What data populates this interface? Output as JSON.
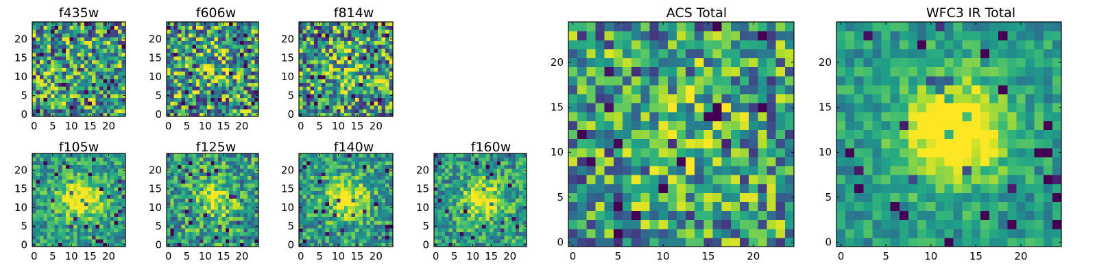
{
  "colors": {
    "colormap": "viridis",
    "low": "#440154",
    "high": "#fde725"
  },
  "chart_data": [
    {
      "type": "heatmap",
      "title": "f435w",
      "x_ticks": [
        "0",
        "5",
        "10",
        "15",
        "20"
      ],
      "y_ticks": [
        "0",
        "5",
        "10",
        "15",
        "20"
      ],
      "xlim": [
        -0.5,
        24.5
      ],
      "ylim": [
        -0.5,
        24.5
      ],
      "grid_size": 25,
      "grid": false,
      "blob": 0.0,
      "noise": 1.0,
      "seed": 11
    },
    {
      "type": "heatmap",
      "title": "f606w",
      "x_ticks": [
        "0",
        "5",
        "10",
        "15",
        "20"
      ],
      "y_ticks": [
        "0",
        "5",
        "10",
        "15",
        "20"
      ],
      "xlim": [
        -0.5,
        24.5
      ],
      "ylim": [
        -0.5,
        24.5
      ],
      "grid_size": 25,
      "grid": false,
      "blob": 0.15,
      "noise": 1.0,
      "seed": 22
    },
    {
      "type": "heatmap",
      "title": "f814w",
      "x_ticks": [
        "0",
        "5",
        "10",
        "15",
        "20"
      ],
      "y_ticks": [
        "0",
        "5",
        "10",
        "15",
        "20"
      ],
      "xlim": [
        -0.5,
        24.5
      ],
      "ylim": [
        -0.5,
        24.5
      ],
      "grid_size": 25,
      "grid": false,
      "blob": 0.15,
      "noise": 1.0,
      "seed": 33
    },
    {
      "type": "heatmap",
      "title": "f105w",
      "x_ticks": [
        "0",
        "5",
        "10",
        "15",
        "20"
      ],
      "y_ticks": [
        "0",
        "5",
        "10",
        "15",
        "20"
      ],
      "xlim": [
        -0.5,
        24.5
      ],
      "ylim": [
        -0.5,
        24.5
      ],
      "grid_size": 25,
      "grid": false,
      "blob": 0.55,
      "noise": 0.55,
      "seed": 44
    },
    {
      "type": "heatmap",
      "title": "f125w",
      "x_ticks": [
        "0",
        "5",
        "10",
        "15",
        "20"
      ],
      "y_ticks": [
        "0",
        "5",
        "10",
        "15",
        "20"
      ],
      "xlim": [
        -0.5,
        24.5
      ],
      "ylim": [
        -0.5,
        24.5
      ],
      "grid_size": 25,
      "grid": false,
      "blob": 0.4,
      "noise": 0.7,
      "seed": 55
    },
    {
      "type": "heatmap",
      "title": "f140w",
      "x_ticks": [
        "0",
        "5",
        "10",
        "15",
        "20"
      ],
      "y_ticks": [
        "0",
        "5",
        "10",
        "15",
        "20"
      ],
      "xlim": [
        -0.5,
        24.5
      ],
      "ylim": [
        -0.5,
        24.5
      ],
      "grid_size": 25,
      "grid": false,
      "blob": 0.45,
      "noise": 0.6,
      "seed": 66
    },
    {
      "type": "heatmap",
      "title": "f160w",
      "x_ticks": [
        "0",
        "5",
        "10",
        "15",
        "20"
      ],
      "y_ticks": [
        "0",
        "5",
        "10",
        "15",
        "20"
      ],
      "xlim": [
        -0.5,
        24.5
      ],
      "ylim": [
        -0.5,
        24.5
      ],
      "grid_size": 25,
      "grid": false,
      "blob": 0.45,
      "noise": 0.6,
      "seed": 77
    },
    {
      "type": "heatmap",
      "title": "ACS Total",
      "x_ticks": [
        "0",
        "5",
        "10",
        "15",
        "20"
      ],
      "y_ticks": [
        "0",
        "5",
        "10",
        "15",
        "20"
      ],
      "xlim": [
        -0.5,
        24.5
      ],
      "ylim": [
        -0.5,
        24.5
      ],
      "grid_size": 25,
      "grid": false,
      "blob": 0.2,
      "noise": 0.9,
      "seed": 88
    },
    {
      "type": "heatmap",
      "title": "WFC3 IR Total",
      "x_ticks": [
        "0",
        "5",
        "10",
        "15",
        "20"
      ],
      "y_ticks": [
        "0",
        "5",
        "10",
        "15",
        "20"
      ],
      "xlim": [
        -0.5,
        24.5
      ],
      "ylim": [
        -0.5,
        24.5
      ],
      "grid_size": 25,
      "grid": false,
      "blob": 0.75,
      "noise": 0.4,
      "seed": 99
    }
  ]
}
